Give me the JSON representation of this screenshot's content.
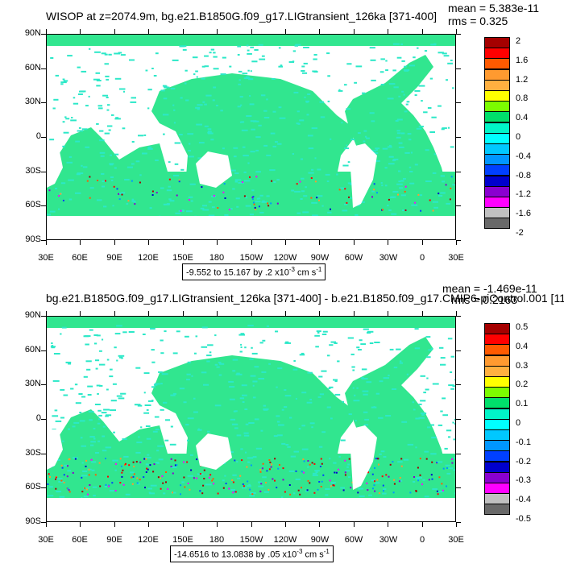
{
  "panels": [
    {
      "title": "WISOP at z=2074.9m, bg.e21.B1850G.f09_g17.LIGtransient_126ka [371-400]",
      "mean": "mean = 5.383e-11",
      "rms": "rms = 0.325",
      "range_text": "-9.552 to 15.167 by .2 x10",
      "range_exp": "-3",
      "range_unit": " cm s",
      "range_unit_exp": "-1",
      "lat_labels": [
        "90N",
        "60N",
        "30N",
        "0",
        "30S",
        "60S",
        "90S"
      ],
      "lon_labels": [
        "30E",
        "60E",
        "90E",
        "120E",
        "150E",
        "180",
        "150W",
        "120W",
        "90W",
        "60W",
        "30W",
        "0",
        "30E"
      ],
      "legend_labels": [
        "2",
        "1.6",
        "1.2",
        "0.8",
        "0.4",
        "0",
        "-0.4",
        "-0.8",
        "-1.2",
        "-1.6",
        "-2"
      ]
    },
    {
      "title": "bg.e21.B1850G.f09_g17.LIGtransient_126ka [371-400] - b.e21.B1850.f09_g17.CMIP6-piControl.001 [11",
      "mean": "mean = -1.469e-11",
      "rms": "rms = 0.2163",
      "range_text": "-14.6516 to 13.0838 by .05 x10",
      "range_exp": "-3",
      "range_unit": " cm s",
      "range_unit_exp": "-1",
      "lat_labels": [
        "90N",
        "60N",
        "30N",
        "0",
        "30S",
        "60S",
        "90S"
      ],
      "lon_labels": [
        "30E",
        "60E",
        "90E",
        "120E",
        "150E",
        "180",
        "150W",
        "120W",
        "90W",
        "60W",
        "30W",
        "0",
        "30E"
      ],
      "legend_labels": [
        "0.5",
        "0.4",
        "0.3",
        "0.2",
        "0.1",
        "0",
        "-0.1",
        "-0.2",
        "-0.3",
        "-0.4",
        "-0.5"
      ]
    }
  ],
  "colors": {
    "palette": [
      "#a50000",
      "#ff0000",
      "#ff5a00",
      "#ff9a30",
      "#ffb040",
      "#ffff00",
      "#7cfc00",
      "#00e06b",
      "#00f5c8",
      "#00ffff",
      "#00c8ff",
      "#0096ff",
      "#0040ff",
      "#0000cd",
      "#8a00d0",
      "#ff00ff",
      "#c0c0c0",
      "#696969"
    ],
    "ocean_main": "#31e68f",
    "ocean_alt": "#2ce8c8"
  }
}
